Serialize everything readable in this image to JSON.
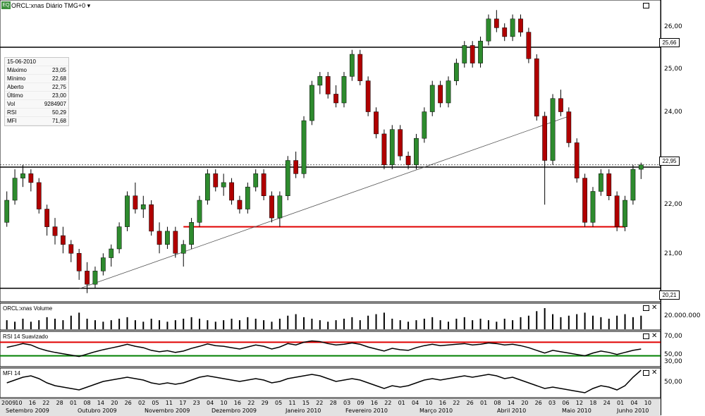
{
  "window": {
    "logo_text": "EQ",
    "title": "ORCL:xnas Diário TMG+0",
    "dropdown_icon": "chevron-down-icon"
  },
  "info_box": {
    "date": "15-06-2010",
    "rows": [
      {
        "label": "Máximo",
        "value": "23,05"
      },
      {
        "label": "Mínimo",
        "value": "22,68"
      },
      {
        "label": "Aberto",
        "value": "22,75"
      },
      {
        "label": "Último",
        "value": "23,00"
      },
      {
        "label": "Vol",
        "value": "9284907"
      },
      {
        "label": "RSI",
        "value": "50,29"
      },
      {
        "label": "MFI",
        "value": "71,68"
      }
    ]
  },
  "panels": {
    "volume_title": "ORCL:xnas Volume",
    "volume_axis_label": "20.000.000",
    "rsi_title": "RSI 14 Suavizado",
    "rsi_levels": [
      "70,00",
      "50,00",
      "30,00"
    ],
    "mfi_title": "MFI 14",
    "mfi_axis_label": "50,00"
  },
  "price_tags": [
    "25,66",
    "22,95",
    "20,21"
  ],
  "chart_data": {
    "type": "candlestick",
    "y_ticks": [
      "26,00",
      "25,00",
      "24,00",
      "22,00",
      "21,00"
    ],
    "ylim": [
      20.0,
      26.6
    ],
    "horizontal_lines": [
      25.66,
      22.95,
      20.21
    ],
    "support_line_red": 21.6,
    "colors": {
      "up": "#2e8b2e",
      "down": "#b00000",
      "line": "#000000",
      "red": "#e00000",
      "green": "#008000"
    },
    "candles": [
      [
        21.7,
        22.4,
        21.6,
        22.2
      ],
      [
        22.2,
        22.9,
        22.1,
        22.7
      ],
      [
        22.7,
        23.0,
        22.5,
        22.8
      ],
      [
        22.8,
        22.9,
        22.4,
        22.6
      ],
      [
        22.6,
        22.7,
        21.9,
        22.0
      ],
      [
        22.0,
        22.1,
        21.4,
        21.6
      ],
      [
        21.6,
        21.8,
        21.2,
        21.4
      ],
      [
        21.4,
        21.6,
        21.0,
        21.2
      ],
      [
        21.2,
        21.3,
        20.8,
        21.0
      ],
      [
        21.0,
        21.1,
        20.4,
        20.6
      ],
      [
        20.6,
        20.8,
        20.1,
        20.3
      ],
      [
        20.3,
        20.7,
        20.2,
        20.6
      ],
      [
        20.6,
        21.0,
        20.5,
        20.9
      ],
      [
        20.9,
        21.2,
        20.7,
        21.1
      ],
      [
        21.1,
        21.7,
        21.0,
        21.6
      ],
      [
        21.6,
        22.4,
        21.5,
        22.3
      ],
      [
        22.3,
        22.6,
        21.9,
        22.0
      ],
      [
        22.0,
        22.3,
        21.8,
        22.1
      ],
      [
        22.1,
        22.2,
        21.4,
        21.5
      ],
      [
        21.5,
        21.7,
        21.0,
        21.2
      ],
      [
        21.2,
        21.6,
        21.1,
        21.5
      ],
      [
        21.5,
        21.6,
        20.9,
        21.0
      ],
      [
        21.0,
        21.3,
        20.7,
        21.2
      ],
      [
        21.2,
        21.8,
        21.1,
        21.7
      ],
      [
        21.7,
        22.3,
        21.6,
        22.2
      ],
      [
        22.2,
        22.9,
        22.1,
        22.8
      ],
      [
        22.8,
        22.9,
        22.4,
        22.5
      ],
      [
        22.5,
        22.8,
        22.3,
        22.6
      ],
      [
        22.6,
        22.7,
        22.1,
        22.2
      ],
      [
        22.2,
        22.3,
        21.9,
        22.0
      ],
      [
        22.0,
        22.6,
        21.9,
        22.5
      ],
      [
        22.5,
        22.9,
        22.4,
        22.8
      ],
      [
        22.8,
        22.9,
        22.2,
        22.3
      ],
      [
        22.3,
        22.4,
        21.7,
        21.8
      ],
      [
        21.8,
        22.4,
        21.6,
        22.3
      ],
      [
        22.3,
        23.2,
        22.2,
        23.1
      ],
      [
        23.1,
        23.3,
        22.7,
        22.8
      ],
      [
        22.8,
        24.1,
        22.7,
        24.0
      ],
      [
        24.0,
        24.9,
        23.9,
        24.8
      ],
      [
        24.8,
        25.1,
        24.6,
        25.0
      ],
      [
        25.0,
        25.1,
        24.5,
        24.6
      ],
      [
        24.6,
        24.8,
        24.3,
        24.4
      ],
      [
        24.4,
        25.1,
        24.3,
        25.0
      ],
      [
        25.0,
        25.6,
        24.9,
        25.5
      ],
      [
        25.5,
        25.6,
        24.8,
        24.9
      ],
      [
        24.9,
        25.0,
        24.1,
        24.2
      ],
      [
        24.2,
        24.3,
        23.6,
        23.7
      ],
      [
        23.7,
        23.8,
        22.9,
        23.0
      ],
      [
        23.0,
        23.9,
        22.9,
        23.8
      ],
      [
        23.8,
        23.9,
        23.1,
        23.2
      ],
      [
        23.2,
        23.3,
        22.9,
        23.0
      ],
      [
        23.0,
        23.7,
        22.9,
        23.6
      ],
      [
        23.6,
        24.3,
        23.5,
        24.2
      ],
      [
        24.2,
        24.9,
        24.1,
        24.8
      ],
      [
        24.8,
        24.9,
        24.3,
        24.4
      ],
      [
        24.4,
        25.0,
        24.3,
        24.9
      ],
      [
        24.9,
        25.4,
        24.8,
        25.3
      ],
      [
        25.3,
        25.8,
        25.2,
        25.7
      ],
      [
        25.7,
        25.8,
        25.2,
        25.3
      ],
      [
        25.3,
        25.9,
        25.2,
        25.8
      ],
      [
        25.8,
        26.4,
        25.7,
        26.3
      ],
      [
        26.3,
        26.5,
        26.0,
        26.1
      ],
      [
        26.1,
        26.2,
        25.8,
        25.9
      ],
      [
        25.9,
        26.4,
        25.8,
        26.3
      ],
      [
        26.3,
        26.4,
        25.9,
        26.0
      ],
      [
        26.0,
        26.1,
        25.3,
        25.4
      ],
      [
        25.4,
        25.5,
        24.0,
        24.1
      ],
      [
        24.1,
        24.2,
        22.1,
        23.1
      ],
      [
        23.1,
        24.6,
        23.0,
        24.5
      ],
      [
        24.5,
        24.7,
        24.1,
        24.2
      ],
      [
        24.2,
        24.3,
        23.4,
        23.5
      ],
      [
        23.5,
        23.6,
        22.6,
        22.7
      ],
      [
        22.7,
        22.8,
        21.6,
        21.7
      ],
      [
        21.7,
        22.5,
        21.6,
        22.4
      ],
      [
        22.4,
        22.9,
        22.3,
        22.8
      ],
      [
        22.8,
        22.9,
        22.2,
        22.3
      ],
      [
        22.3,
        22.4,
        21.5,
        21.6
      ],
      [
        21.6,
        22.3,
        21.5,
        22.2
      ],
      [
        22.2,
        23.0,
        22.1,
        22.9
      ],
      [
        22.9,
        23.05,
        22.68,
        23.0
      ]
    ],
    "volume": [
      6,
      5,
      7,
      5,
      6,
      8,
      7,
      6,
      9,
      11,
      7,
      6,
      5,
      6,
      7,
      8,
      6,
      5,
      7,
      6,
      5,
      6,
      7,
      8,
      7,
      6,
      5,
      6,
      7,
      6,
      8,
      7,
      6,
      5,
      7,
      9,
      10,
      8,
      7,
      6,
      5,
      6,
      7,
      8,
      6,
      9,
      10,
      11,
      7,
      6,
      5,
      6,
      7,
      8,
      6,
      5,
      7,
      8,
      6,
      7,
      6,
      5,
      7,
      6,
      8,
      9,
      12,
      14,
      10,
      8,
      9,
      10,
      11,
      9,
      8,
      7,
      9,
      10,
      8,
      9
    ],
    "rsi": [
      55,
      60,
      66,
      62,
      52,
      45,
      40,
      36,
      32,
      28,
      35,
      42,
      48,
      53,
      58,
      64,
      58,
      54,
      46,
      42,
      45,
      40,
      44,
      52,
      58,
      65,
      60,
      58,
      54,
      50,
      56,
      62,
      58,
      50,
      56,
      66,
      62,
      70,
      74,
      72,
      66,
      62,
      64,
      68,
      64,
      56,
      50,
      44,
      52,
      48,
      46,
      54,
      60,
      64,
      60,
      62,
      64,
      66,
      62,
      64,
      68,
      66,
      62,
      64,
      60,
      54,
      46,
      38,
      46,
      42,
      38,
      34,
      30,
      38,
      44,
      40,
      34,
      40,
      46,
      50
    ],
    "mfi": [
      50,
      54,
      58,
      60,
      56,
      50,
      46,
      44,
      42,
      40,
      44,
      48,
      52,
      54,
      56,
      58,
      56,
      54,
      50,
      48,
      50,
      48,
      50,
      54,
      58,
      60,
      58,
      56,
      54,
      52,
      54,
      56,
      54,
      50,
      52,
      56,
      58,
      60,
      62,
      60,
      56,
      52,
      54,
      56,
      54,
      50,
      46,
      42,
      46,
      44,
      46,
      50,
      54,
      56,
      54,
      56,
      58,
      60,
      58,
      60,
      62,
      60,
      56,
      58,
      54,
      50,
      46,
      42,
      44,
      42,
      40,
      38,
      36,
      42,
      46,
      44,
      40,
      46,
      58,
      68
    ]
  },
  "x_axis": {
    "day_ticks": [
      "2009",
      "10",
      "16",
      "22",
      "28",
      "01",
      "08",
      "14",
      "20",
      "26",
      "02",
      "05",
      "11",
      "17",
      "23",
      "04",
      "10",
      "16",
      "22",
      "29",
      "05",
      "11",
      "15",
      "22",
      "28",
      "03",
      "09",
      "16",
      "22",
      "01",
      "04",
      "10",
      "16",
      "22",
      "26",
      "01",
      "08",
      "14",
      "20",
      "26",
      "03",
      "06",
      "12",
      "18",
      "24",
      "01",
      "04",
      "10"
    ],
    "month_labels": [
      "Setembro 2009",
      "Outubro 2009",
      "Novembro 2009",
      "Dezembro 2009",
      "Janeiro 2010",
      "Fevereiro 2010",
      "Março 2010",
      "Abril 2010",
      "Maio 2010",
      "Junho 2010"
    ]
  }
}
